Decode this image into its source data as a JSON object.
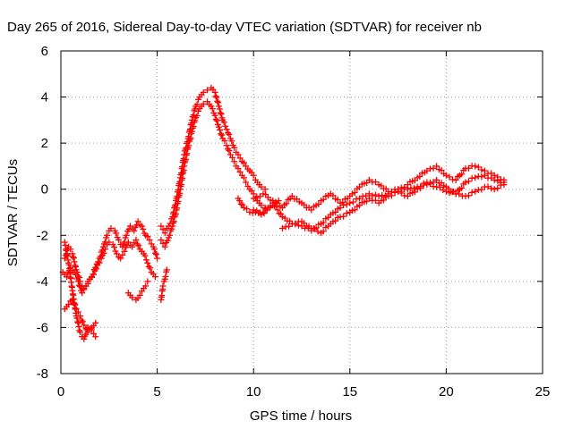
{
  "chart_data": {
    "type": "scatter",
    "title": "Day 265 of 2016, Sidereal Day-to-day VTEC variation (SDTVAR) for receiver nb",
    "xlabel": "GPS time / hours",
    "ylabel": "SDTVAR / TECUs",
    "xlim": [
      0,
      25
    ],
    "ylim": [
      -8,
      6
    ],
    "xticks": [
      "0",
      "5",
      "10",
      "15",
      "20",
      "25"
    ],
    "yticks": [
      "-8",
      "-6",
      "-4",
      "-2",
      "0",
      "2",
      "4",
      "6"
    ],
    "grid": true,
    "marker": "plus",
    "color": "#ff0000",
    "series": [
      {
        "x": [
          0.2,
          0.4,
          0.6,
          0.8,
          1.0,
          1.2,
          1.4,
          1.6,
          1.8,
          2.0,
          2.2,
          2.4,
          2.6,
          2.8,
          3.0,
          3.2,
          3.4,
          3.6,
          3.8,
          4.0,
          4.2,
          4.4,
          4.6,
          4.8,
          5.0
        ],
        "y": [
          -3.0,
          -2.5,
          -2.8,
          -3.5,
          -4.0,
          -4.3,
          -4.1,
          -3.8,
          -3.4,
          -3.0,
          -2.5,
          -2.0,
          -1.7,
          -1.8,
          -2.2,
          -2.5,
          -2.0,
          -1.6,
          -1.8,
          -1.4,
          -1.6,
          -2.0,
          -2.2,
          -2.5,
          -3.0
        ]
      },
      {
        "x": [
          0.1,
          0.3,
          0.5,
          0.7,
          0.9,
          1.1,
          1.3,
          1.5,
          1.7,
          1.9,
          2.1,
          2.3,
          2.5,
          2.7,
          2.9,
          3.1,
          3.3,
          3.5,
          3.7,
          3.9,
          4.1,
          4.3,
          4.5,
          4.7,
          4.9
        ],
        "y": [
          -3.6,
          -3.8,
          -3.4,
          -3.6,
          -4.0,
          -4.5,
          -4.2,
          -3.9,
          -3.7,
          -3.3,
          -3.0,
          -2.6,
          -2.3,
          -2.4,
          -2.8,
          -3.0,
          -2.7,
          -2.3,
          -2.5,
          -2.2,
          -2.6,
          -2.8,
          -3.2,
          -3.6,
          -3.8
        ]
      },
      {
        "x": [
          0.2,
          0.4,
          0.6,
          0.8,
          1.0,
          1.2,
          1.4,
          1.6,
          1.8
        ],
        "y": [
          -2.3,
          -3.2,
          -4.4,
          -5.5,
          -6.2,
          -6.5,
          -6.0,
          -6.1,
          -6.4
        ]
      },
      {
        "x": [
          0.2,
          0.4,
          0.6,
          0.8,
          1.0,
          1.2,
          1.4,
          1.6,
          1.8
        ],
        "y": [
          -5.2,
          -5.0,
          -4.8,
          -5.2,
          -5.5,
          -5.9,
          -6.2,
          -6.0,
          -5.8
        ]
      },
      {
        "x": [
          3.5,
          3.7,
          3.9,
          4.1,
          4.3,
          4.5
        ],
        "y": [
          -4.5,
          -4.7,
          -4.8,
          -4.6,
          -4.3,
          -4.0
        ]
      },
      {
        "x": [
          5.2,
          5.3,
          5.4,
          5.5
        ],
        "y": [
          -4.8,
          -4.2,
          -3.9,
          -3.5
        ]
      },
      {
        "x": [
          5.2,
          5.4,
          5.6,
          5.8,
          6.0,
          6.2,
          6.4,
          6.6,
          6.8,
          7.0,
          7.2,
          7.4,
          7.6,
          7.8,
          8.0,
          8.2,
          8.4,
          8.6,
          8.8,
          9.0,
          9.2,
          9.4,
          9.6,
          9.8,
          10.0,
          10.2,
          10.4,
          10.6
        ],
        "y": [
          -1.6,
          -1.9,
          -1.6,
          -1.2,
          -0.4,
          0.5,
          1.5,
          2.2,
          3.0,
          3.6,
          4.0,
          4.2,
          4.3,
          4.4,
          4.2,
          3.6,
          3.0,
          2.6,
          2.2,
          1.8,
          1.5,
          1.2,
          1.0,
          0.8,
          0.6,
          0.3,
          0.1,
          0.0
        ]
      },
      {
        "x": [
          5.2,
          5.4,
          5.6,
          5.8,
          6.0,
          6.2,
          6.4,
          6.6,
          6.8,
          7.0,
          7.2,
          7.4,
          7.6,
          7.8,
          8.0,
          8.2,
          8.4,
          8.6,
          8.8,
          9.0,
          9.2,
          9.4,
          9.6,
          9.8,
          10.0,
          10.2,
          10.4,
          10.6
        ],
        "y": [
          -2.2,
          -2.5,
          -2.1,
          -1.6,
          -0.9,
          0.0,
          1.0,
          1.8,
          2.5,
          3.1,
          3.5,
          3.7,
          3.8,
          3.6,
          3.2,
          2.7,
          2.2,
          1.9,
          1.5,
          1.2,
          0.9,
          0.6,
          0.3,
          0.0,
          -0.2,
          -0.5,
          -0.7,
          -0.8
        ]
      },
      {
        "x": [
          10.0,
          10.5,
          11.0,
          11.5,
          12.0,
          12.5,
          13.0,
          13.5,
          14.0,
          14.5,
          15.0,
          15.5,
          16.0,
          16.5,
          17.0,
          17.5,
          18.0,
          18.5,
          19.0,
          19.5,
          20.0,
          20.5,
          21.0,
          21.5,
          22.0,
          22.5,
          23.0
        ],
        "y": [
          -0.4,
          -0.2,
          -0.5,
          -0.8,
          -0.3,
          -0.6,
          -0.9,
          -0.5,
          -0.2,
          -0.6,
          -0.3,
          0.1,
          0.4,
          0.2,
          -0.1,
          0.0,
          0.2,
          0.5,
          0.8,
          1.0,
          0.6,
          0.4,
          0.9,
          1.0,
          0.8,
          0.6,
          0.4
        ]
      },
      {
        "x": [
          10.0,
          10.5,
          11.0,
          11.5,
          12.0,
          12.5,
          13.0,
          13.5,
          14.0,
          14.5,
          15.0,
          15.5,
          16.0,
          16.5,
          17.0,
          17.5,
          18.0,
          18.5,
          19.0,
          19.5,
          20.0,
          20.5,
          21.0,
          21.5,
          22.0,
          22.5,
          23.0
        ],
        "y": [
          -0.9,
          -1.0,
          -0.6,
          -1.2,
          -1.5,
          -1.4,
          -1.7,
          -1.9,
          -1.5,
          -1.2,
          -1.0,
          -0.7,
          -0.4,
          -0.6,
          -0.3,
          -0.1,
          -0.3,
          0.0,
          0.2,
          0.4,
          0.1,
          -0.2,
          0.3,
          0.5,
          0.6,
          0.4,
          0.3
        ]
      },
      {
        "x": [
          11.5,
          12.0,
          12.5,
          13.0,
          13.5,
          14.0,
          14.5,
          15.0,
          15.5,
          16.0,
          16.5,
          17.0,
          17.5,
          18.0,
          18.5,
          19.0,
          19.5,
          20.0,
          20.5,
          21.0,
          21.5,
          22.0,
          22.5,
          23.0
        ],
        "y": [
          -1.7,
          -1.5,
          -1.6,
          -1.8,
          -1.5,
          -1.1,
          -0.8,
          -0.6,
          -0.4,
          -0.2,
          -0.3,
          -0.2,
          -0.1,
          0.0,
          0.1,
          0.3,
          0.1,
          -0.1,
          -0.2,
          -0.3,
          -0.1,
          0.1,
          0.0,
          0.2
        ]
      },
      {
        "x": [
          9.2,
          9.5,
          9.8,
          10.1,
          10.4,
          10.7,
          11.0,
          11.3
        ],
        "y": [
          -0.4,
          -0.8,
          -1.0,
          -1.0,
          -1.1,
          -0.9,
          -0.7,
          -0.5
        ]
      }
    ]
  }
}
